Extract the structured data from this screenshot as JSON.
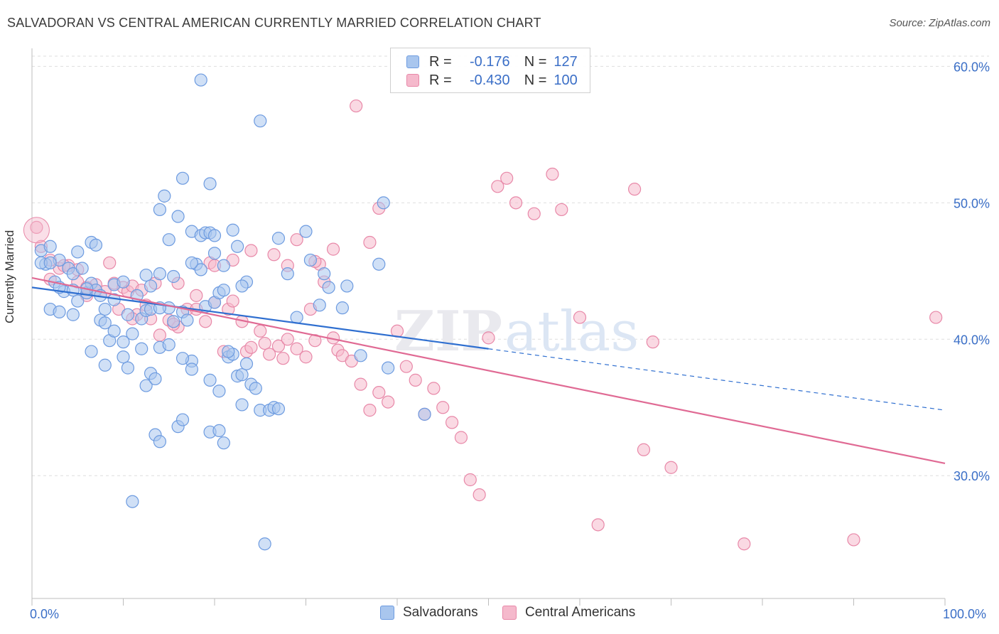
{
  "title": "SALVADORAN VS CENTRAL AMERICAN CURRENTLY MARRIED CORRELATION CHART",
  "source": "Source: ZipAtlas.com",
  "watermark": {
    "part1": "ZIP",
    "part2": "atlas"
  },
  "colors": {
    "blue_fill": "#a9c6ee",
    "blue_stroke": "#6d9be0",
    "blue_line": "#2f6fd0",
    "pink_fill": "#f5b9cc",
    "pink_stroke": "#e888a8",
    "pink_line": "#e06a94",
    "tick_label": "#3b6fc7",
    "grid": "#dedede"
  },
  "legend": [
    {
      "r_label": "R =",
      "r_value": "-0.176",
      "n_label": "N =",
      "n_value": "127"
    },
    {
      "r_label": "R =",
      "r_value": "-0.430",
      "n_label": "N =",
      "n_value": "100"
    }
  ],
  "bottom_legend": [
    "Salvadorans",
    "Central Americans"
  ],
  "chart_data": {
    "type": "scatter",
    "xlabel": "",
    "ylabel": "Currently Married",
    "xlim": [
      0,
      100
    ],
    "ylim": [
      21.0,
      62.0
    ],
    "x_tick_labels": [
      "0.0%",
      "100.0%"
    ],
    "y_ticks": [
      30,
      40,
      50,
      60
    ],
    "y_tick_labels": [
      "30.0%",
      "40.0%",
      "50.0%",
      "60.0%"
    ],
    "grid": true,
    "legend_placement": "top-center",
    "series": [
      {
        "name": "Salvadorans",
        "trend": {
          "x0": 0,
          "y0": 43.8,
          "x1": 50,
          "y1": 39.3,
          "dashed_to_x": 100,
          "dashed_to_y": 34.8
        },
        "points": [
          [
            1,
            46.5
          ],
          [
            1.5,
            45.5
          ],
          [
            2,
            46.8
          ],
          [
            2.5,
            44.2
          ],
          [
            3,
            45.8
          ],
          [
            3.5,
            43.5
          ],
          [
            4,
            45.2
          ],
          [
            1,
            45.6
          ],
          [
            2,
            45.6
          ],
          [
            4.5,
            44.8
          ],
          [
            5,
            42.8
          ],
          [
            6,
            43.4
          ],
          [
            6.5,
            44.1
          ],
          [
            7,
            43.6
          ],
          [
            5,
            46.4
          ],
          [
            5.5,
            45.2
          ],
          [
            6.5,
            47.1
          ],
          [
            7,
            46.9
          ],
          [
            7.5,
            43.2
          ],
          [
            8,
            42.2
          ],
          [
            2,
            42.2
          ],
          [
            3,
            42.0
          ],
          [
            4.5,
            41.8
          ],
          [
            7.5,
            41.4
          ],
          [
            8,
            41.2
          ],
          [
            8.5,
            39.9
          ],
          [
            9,
            40.6
          ],
          [
            10,
            39.8
          ],
          [
            11,
            40.4
          ],
          [
            10.5,
            41.8
          ],
          [
            12,
            41.5
          ],
          [
            12.5,
            42.1
          ],
          [
            13,
            42.2
          ],
          [
            11.5,
            43.2
          ],
          [
            12.5,
            44.7
          ],
          [
            13,
            43.9
          ],
          [
            14,
            44.8
          ],
          [
            15,
            42.3
          ],
          [
            15.5,
            41.3
          ],
          [
            9,
            44.0
          ],
          [
            6.5,
            39.1
          ],
          [
            8,
            38.1
          ],
          [
            10,
            38.7
          ],
          [
            10.5,
            37.9
          ],
          [
            13,
            37.5
          ],
          [
            12.5,
            36.6
          ],
          [
            13.5,
            37.1
          ],
          [
            14,
            39.4
          ],
          [
            15,
            39.6
          ],
          [
            16.5,
            42.0
          ],
          [
            17,
            41.4
          ],
          [
            17.5,
            38.4
          ],
          [
            17.5,
            37.8
          ],
          [
            19,
            42.4
          ],
          [
            20,
            42.7
          ],
          [
            20.5,
            43.4
          ],
          [
            19.5,
            37.0
          ],
          [
            20.5,
            36.2
          ],
          [
            21.5,
            38.7
          ],
          [
            22,
            38.9
          ],
          [
            22.5,
            37.3
          ],
          [
            23,
            37.4
          ],
          [
            23.5,
            38.2
          ],
          [
            24,
            36.7
          ],
          [
            23,
            35.2
          ],
          [
            24.5,
            36.4
          ],
          [
            25,
            34.8
          ],
          [
            26,
            34.8
          ],
          [
            26.5,
            35.0
          ],
          [
            27,
            34.9
          ],
          [
            13.5,
            33.0
          ],
          [
            14,
            32.5
          ],
          [
            16,
            33.6
          ],
          [
            16.5,
            34.1
          ],
          [
            19.5,
            33.2
          ],
          [
            21,
            32.4
          ],
          [
            20.5,
            33.3
          ],
          [
            11,
            28.1
          ],
          [
            25.5,
            25.0
          ],
          [
            14,
            49.5
          ],
          [
            14.5,
            50.5
          ],
          [
            15,
            47.3
          ],
          [
            15.5,
            44.6
          ],
          [
            16,
            49.0
          ],
          [
            16.5,
            51.8
          ],
          [
            17.5,
            47.9
          ],
          [
            18.5,
            47.6
          ],
          [
            19,
            47.8
          ],
          [
            19.5,
            47.8
          ],
          [
            20,
            46.3
          ],
          [
            18,
            45.5
          ],
          [
            18.5,
            45.1
          ],
          [
            18.5,
            59.0
          ],
          [
            20,
            47.6
          ],
          [
            21,
            45.4
          ],
          [
            22,
            48.0
          ],
          [
            21,
            43.6
          ],
          [
            22.5,
            46.8
          ],
          [
            23.5,
            44.2
          ],
          [
            19.5,
            51.4
          ],
          [
            25,
            56.0
          ],
          [
            27,
            47.4
          ],
          [
            28,
            44.8
          ],
          [
            29,
            41.6
          ],
          [
            30,
            47.9
          ],
          [
            30.5,
            45.8
          ],
          [
            32,
            44.8
          ],
          [
            32.5,
            43.8
          ],
          [
            31.5,
            42.5
          ],
          [
            34,
            42.3
          ],
          [
            34.5,
            43.9
          ],
          [
            38,
            45.5
          ],
          [
            36,
            38.8
          ],
          [
            39,
            37.9
          ],
          [
            38.5,
            50.0
          ],
          [
            43,
            34.5
          ],
          [
            14,
            42.3
          ],
          [
            9,
            42.9
          ],
          [
            10,
            44.2
          ],
          [
            3,
            43.8
          ],
          [
            4.5,
            43.6
          ],
          [
            6,
            43.7
          ],
          [
            17.5,
            45.6
          ],
          [
            21.5,
            39.1
          ],
          [
            23,
            43.9
          ],
          [
            16.5,
            38.6
          ],
          [
            12,
            39.3
          ]
        ]
      },
      {
        "name": "Central Americans",
        "trend": {
          "x0": 0,
          "y0": 44.5,
          "x1": 100,
          "y1": 30.9
        },
        "points": [
          [
            0.5,
            48.2
          ],
          [
            1,
            46.8
          ],
          [
            2,
            45.8
          ],
          [
            3,
            45.2
          ],
          [
            4,
            45.4
          ],
          [
            5,
            44.2
          ],
          [
            6,
            43.2
          ],
          [
            7,
            44.0
          ],
          [
            8,
            43.5
          ],
          [
            3.5,
            45.4
          ],
          [
            6,
            43.8
          ],
          [
            8.5,
            45.6
          ],
          [
            9,
            44.1
          ],
          [
            10,
            43.8
          ],
          [
            10.5,
            43.5
          ],
          [
            11,
            43.9
          ],
          [
            12,
            43.6
          ],
          [
            12.5,
            42.5
          ],
          [
            11.5,
            41.8
          ],
          [
            13,
            41.5
          ],
          [
            14,
            40.3
          ],
          [
            15,
            41.4
          ],
          [
            16,
            40.9
          ],
          [
            16,
            44.1
          ],
          [
            17,
            42.2
          ],
          [
            18,
            43.2
          ],
          [
            19,
            41.3
          ],
          [
            19.5,
            45.6
          ],
          [
            20,
            42.7
          ],
          [
            21,
            39.1
          ],
          [
            21.5,
            42.2
          ],
          [
            22,
            42.8
          ],
          [
            23,
            41.3
          ],
          [
            23.5,
            39.1
          ],
          [
            24,
            39.4
          ],
          [
            25,
            40.6
          ],
          [
            25.5,
            39.7
          ],
          [
            26,
            38.9
          ],
          [
            27,
            39.5
          ],
          [
            27.5,
            38.6
          ],
          [
            28,
            40.0
          ],
          [
            29,
            39.3
          ],
          [
            30,
            38.7
          ],
          [
            30.5,
            42.2
          ],
          [
            31,
            39.9
          ],
          [
            31.5,
            45.5
          ],
          [
            32,
            44.2
          ],
          [
            33,
            40.1
          ],
          [
            33.5,
            39.2
          ],
          [
            34,
            38.8
          ],
          [
            35,
            38.4
          ],
          [
            36,
            36.7
          ],
          [
            37,
            34.8
          ],
          [
            38,
            36.1
          ],
          [
            39,
            35.4
          ],
          [
            40,
            40.6
          ],
          [
            41,
            38.0
          ],
          [
            42,
            37.0
          ],
          [
            43,
            34.5
          ],
          [
            44,
            36.4
          ],
          [
            45,
            35.0
          ],
          [
            46,
            33.9
          ],
          [
            47,
            32.8
          ],
          [
            48,
            29.7
          ],
          [
            49,
            28.6
          ],
          [
            50,
            40.1
          ],
          [
            51,
            51.2
          ],
          [
            52,
            51.8
          ],
          [
            53,
            50.0
          ],
          [
            55,
            49.2
          ],
          [
            57,
            52.1
          ],
          [
            58,
            49.5
          ],
          [
            60,
            41.6
          ],
          [
            62,
            26.4
          ],
          [
            66,
            51.0
          ],
          [
            67,
            31.9
          ],
          [
            68,
            39.8
          ],
          [
            70,
            30.6
          ],
          [
            78,
            25.0
          ],
          [
            90,
            25.3
          ],
          [
            99,
            41.6
          ],
          [
            35.5,
            57.1
          ],
          [
            38,
            49.6
          ],
          [
            37,
            47.1
          ],
          [
            33,
            46.6
          ],
          [
            31,
            45.7
          ],
          [
            29,
            47.3
          ],
          [
            28,
            45.4
          ],
          [
            26.5,
            46.2
          ],
          [
            24,
            46.5
          ],
          [
            22,
            45.8
          ],
          [
            20,
            45.4
          ],
          [
            18,
            42.2
          ],
          [
            15.5,
            41.1
          ],
          [
            13.5,
            44.1
          ],
          [
            11,
            41.5
          ],
          [
            9.5,
            42.2
          ],
          [
            7,
            43.6
          ],
          [
            5,
            45.1
          ],
          [
            2,
            44.4
          ]
        ]
      }
    ]
  }
}
